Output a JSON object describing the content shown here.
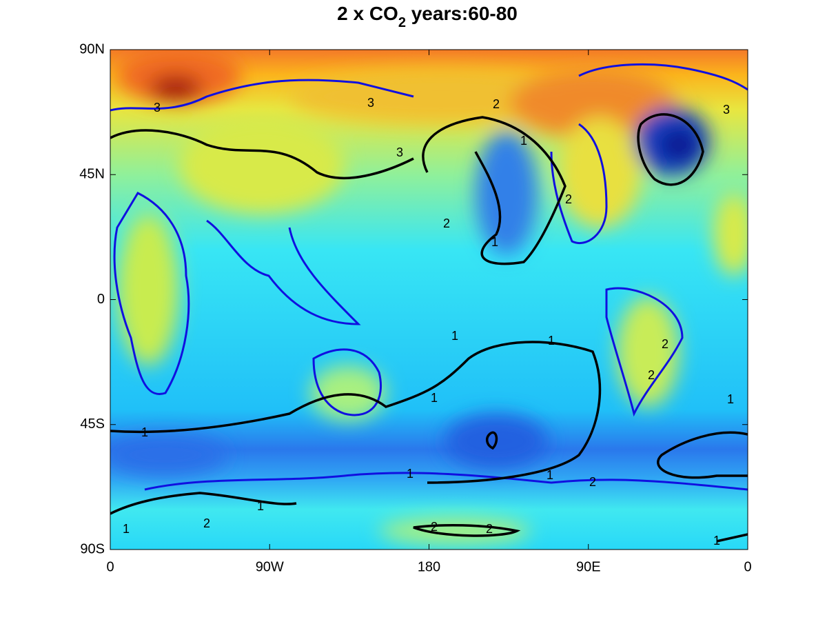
{
  "chart_data": {
    "type": "map",
    "title": [
      "2 x CO",
      "2",
      " years:60-80"
    ],
    "xlim": [
      0,
      360
    ],
    "xticks": [
      0,
      {
        "value": 90,
        "label": "90W"
      },
      180,
      {
        "value": 270,
        "label": "90E"
      },
      {
        "value": 360,
        "label": "0"
      }
    ],
    "ylim": [
      -90,
      90
    ],
    "yticks": [
      {
        "value": 90,
        "label": "90N"
      },
      {
        "value": 45,
        "label": "45N"
      },
      0,
      {
        "value": -45,
        "label": "45S"
      },
      {
        "value": -90,
        "label": "90S"
      }
    ],
    "contour_labels": [
      "1",
      "1",
      "1",
      "1",
      "1",
      "1",
      "1",
      "1",
      "1",
      "1",
      "1",
      "1",
      "2",
      "2",
      "2",
      "2",
      "2",
      "2",
      "2",
      "2",
      "2",
      "3",
      "3",
      "3",
      "3"
    ]
  }
}
